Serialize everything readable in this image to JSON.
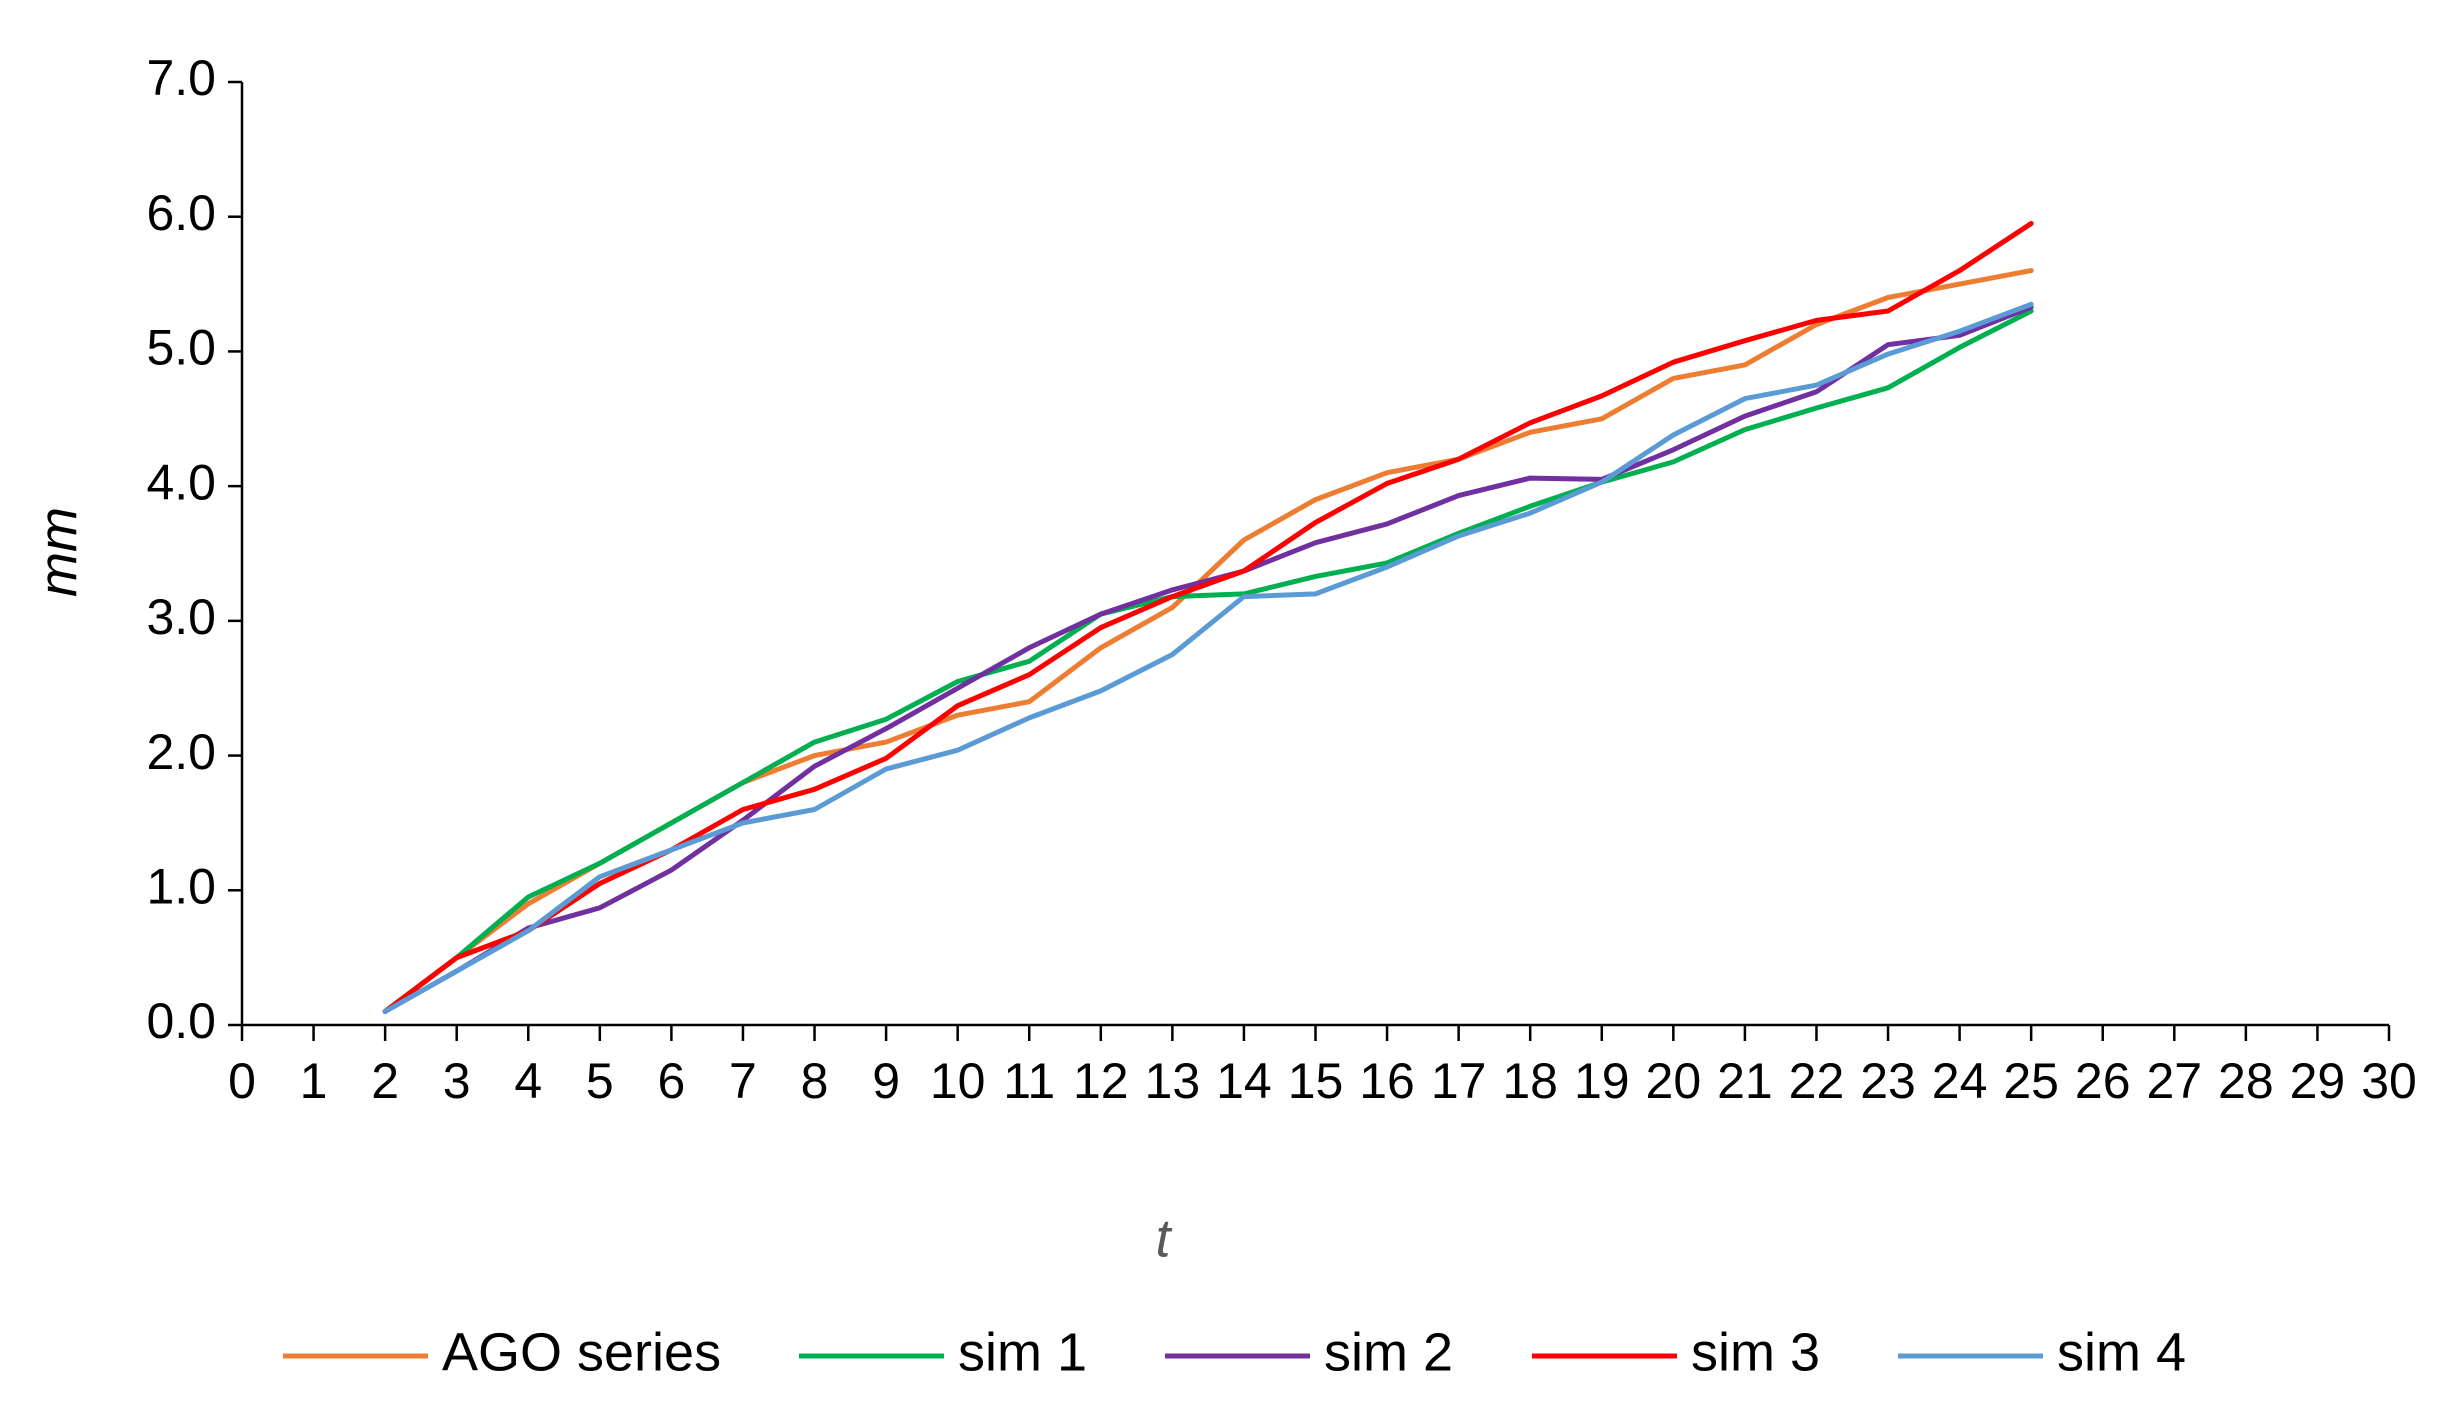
{
  "chart_data": {
    "type": "line",
    "xlabel": "t",
    "ylabel": "mm",
    "xlim": [
      0,
      30
    ],
    "ylim": [
      0,
      7
    ],
    "x_ticks": [
      "0",
      "1",
      "2",
      "3",
      "4",
      "5",
      "6",
      "7",
      "8",
      "9",
      "10",
      "11",
      "12",
      "13",
      "14",
      "15",
      "16",
      "17",
      "18",
      "19",
      "20",
      "21",
      "22",
      "23",
      "24",
      "25",
      "26",
      "27",
      "28",
      "29",
      "30"
    ],
    "y_ticks": [
      "0.0",
      "1.0",
      "2.0",
      "3.0",
      "4.0",
      "5.0",
      "6.0",
      "7.0"
    ],
    "grid": false,
    "legend_position": "bottom",
    "x": [
      2,
      3,
      4,
      5,
      6,
      7,
      8,
      9,
      10,
      11,
      12,
      13,
      14,
      15,
      16,
      17,
      18,
      19,
      20,
      21,
      22,
      23,
      24,
      25
    ],
    "series": [
      {
        "name": "AGO series",
        "color": "#ED7D31",
        "values": [
          0.1,
          0.5,
          0.9,
          1.2,
          1.5,
          1.8,
          2.0,
          2.1,
          2.3,
          2.4,
          2.8,
          3.1,
          3.6,
          3.9,
          4.1,
          4.2,
          4.4,
          4.5,
          4.8,
          4.9,
          5.2,
          5.4,
          5.5,
          5.6
        ]
      },
      {
        "name": "sim 1",
        "color": "#00B050",
        "values": [
          0.1,
          0.5,
          0.95,
          1.2,
          1.5,
          1.8,
          2.1,
          2.27,
          2.55,
          2.7,
          3.05,
          3.18,
          3.2,
          3.33,
          3.43,
          3.65,
          3.85,
          4.03,
          4.18,
          4.42,
          4.58,
          4.73,
          5.03,
          5.3
        ]
      },
      {
        "name": "sim 2",
        "color": "#7030A0",
        "values": [
          0.1,
          0.4,
          0.72,
          0.87,
          1.15,
          1.52,
          1.92,
          2.2,
          2.5,
          2.8,
          3.05,
          3.23,
          3.37,
          3.58,
          3.72,
          3.93,
          4.06,
          4.05,
          4.27,
          4.52,
          4.7,
          5.05,
          5.12,
          5.33
        ]
      },
      {
        "name": "sim 3",
        "color": "#FF0000",
        "values": [
          0.1,
          0.5,
          0.7,
          1.05,
          1.3,
          1.6,
          1.75,
          1.98,
          2.37,
          2.6,
          2.95,
          3.18,
          3.37,
          3.73,
          4.02,
          4.2,
          4.47,
          4.67,
          4.92,
          5.08,
          5.23,
          5.3,
          5.6,
          5.95
        ]
      },
      {
        "name": "sim 4",
        "color": "#5B9BD5",
        "values": [
          0.1,
          0.4,
          0.7,
          1.1,
          1.3,
          1.5,
          1.6,
          1.9,
          2.04,
          2.28,
          2.48,
          2.75,
          3.18,
          3.2,
          3.4,
          3.63,
          3.8,
          4.03,
          4.38,
          4.65,
          4.75,
          4.98,
          5.15,
          5.35
        ]
      }
    ]
  }
}
